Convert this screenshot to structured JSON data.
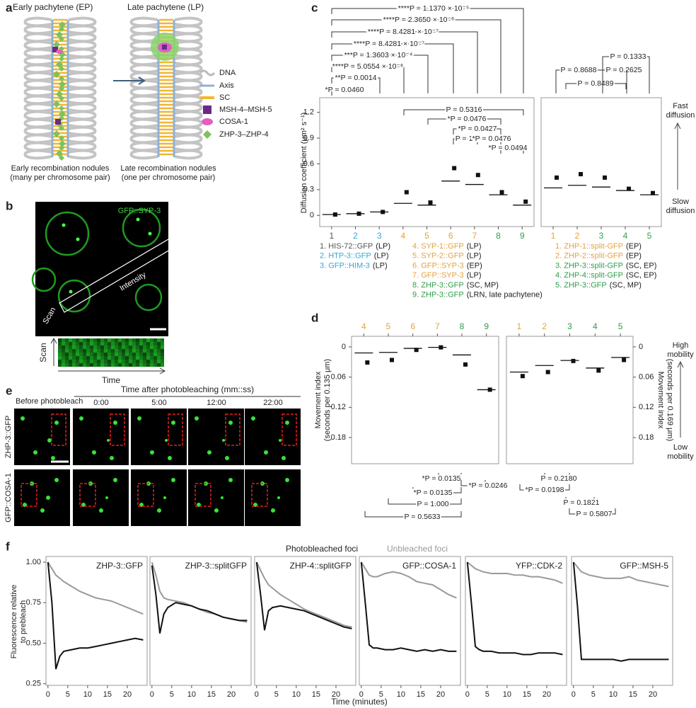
{
  "panels": [
    "a",
    "b",
    "c",
    "d",
    "e",
    "f"
  ],
  "a": {
    "titles": [
      "Early pachytene (EP)",
      "Late pachytene (LP)"
    ],
    "legend": [
      "DNA",
      "Axis",
      "SC",
      "MSH-4–MSH-5",
      "COSA-1",
      "ZHP-3–ZHP-4"
    ],
    "captions": [
      "Early recombination nodules",
      "(many per chromosome pair)",
      "Late recombination nodules",
      "(one per chromosome pair)"
    ]
  },
  "b": {
    "label": "GFP::SYP-3",
    "intensity": "Intensity",
    "scan": "Scan",
    "kymo_y": "Scan",
    "kymo_x": "Time"
  },
  "c": {
    "y_label": "Diffusion coefficient (μm² s⁻¹)",
    "fast": [
      "Fast",
      "diffusion"
    ],
    "slow": [
      "Slow",
      "diffusion"
    ],
    "legend_left": [
      {
        "name": "1. HIS-72::GFP",
        "stage": "(LP)"
      },
      {
        "name": "2. HTP-3::GFP",
        "stage": "(LP)"
      },
      {
        "name": "3. GFP::HIM-3",
        "stage": "(LP)"
      }
    ],
    "legend_mid": [
      {
        "name": "4. SYP-1::GFP",
        "stage": "(LP)"
      },
      {
        "name": "5. SYP-2::GFP",
        "stage": "(LP)"
      },
      {
        "name": "6. GFP::SYP-3",
        "stage": "(EP)"
      },
      {
        "name": "7. GFP::SYP-3",
        "stage": "(LP)"
      },
      {
        "name": "8. ZHP-3::GFP",
        "stage": "(SC, MP)"
      },
      {
        "name": "9. ZHP-3::GFP",
        "stage": "(LRN, late pachytene)"
      }
    ],
    "legend_right": [
      {
        "name": "1. ZHP-1::split-GFP",
        "stage": "(EP)"
      },
      {
        "name": "2. ZHP-2::split-GFP",
        "stage": "(EP)"
      },
      {
        "name": "3. ZHP-3::split-GFP",
        "stage": "(SC, EP)"
      },
      {
        "name": "4. ZHP-4::split-GFP",
        "stage": "(SC, EP)"
      },
      {
        "name": "5. ZHP-3::GFP",
        "stage": "(SC, MP)"
      }
    ],
    "pvalues_top": [
      "****P = 1.1370 × 10⁻⁵",
      "****P = 2.3650 × 10⁻⁶",
      "****P = 8.4281 × 10⁻⁷",
      "****P = 8.4281 × 10⁻⁷",
      "***P = 1.3603 × 10⁻⁴",
      "****P = 5.0554 × 10⁻⁶",
      "**P = 0.0014",
      "*P = 0.0460"
    ],
    "pvalues_left": [
      "P = 0.5316",
      "*P = 0.0476",
      "*P = 0.0427",
      "P = 1",
      "*P = 0.0476",
      "*P = 0.0494"
    ],
    "pvalues_right": [
      "P = 0.1333",
      "P = 0.8688",
      "P = 0.2625",
      "P = 0.8489"
    ]
  },
  "d": {
    "y_label": [
      "Movement index",
      "(seconds per 0.135 μm)"
    ],
    "y2_label": [
      "Movement index",
      "(seconds per 0.169 μm)"
    ],
    "high": [
      "High",
      "mobility"
    ],
    "low": [
      "Low",
      "mobility"
    ],
    "pvalues": [
      "*P = 0.0135",
      "*P = 0.0246",
      "*P = 0.0135",
      "P = 1.000",
      "P = 0.5633",
      "P = 0.2180",
      "*P = 0.0198",
      "P = 0.1821",
      "P = 0.5807"
    ]
  },
  "e": {
    "before": "Before photobleach",
    "time_title": "Time after photobleaching (mm::ss)",
    "times": [
      "0:00",
      "5:00",
      "12:00",
      "22:00"
    ],
    "rows": [
      "ZHP-3::GFP",
      "GFP::COSA-1"
    ]
  },
  "f": {
    "y_label": [
      "Fluorescence relative",
      "to prebleach"
    ],
    "x_label": "Time (minutes)"
  },
  "chart_data": [
    {
      "type": "dot",
      "categories": [
        "1",
        "2",
        "3",
        "4",
        "5",
        "6",
        "7",
        "8",
        "9"
      ],
      "category_colors": [
        "#555555",
        "#35a7d8",
        "#35a7d8",
        "#e6a23c",
        "#e6a23c",
        "#e6a23c",
        "#e6a23c",
        "#2f9e4a",
        "#2f9e4a"
      ],
      "means": [
        0.01,
        0.02,
        0.04,
        0.27,
        0.15,
        0.55,
        0.47,
        0.27,
        0.16
      ],
      "medians": [
        0.01,
        0.02,
        0.04,
        0.14,
        0.12,
        0.4,
        0.36,
        0.24,
        0.12
      ],
      "ylim": [
        -0.13,
        1.37
      ],
      "yticks": [
        0,
        0.3,
        0.6,
        0.9,
        1.2
      ]
    },
    {
      "type": "dot",
      "categories": [
        "1",
        "2",
        "3",
        "4",
        "5"
      ],
      "category_colors": [
        "#e6a23c",
        "#e6a23c",
        "#2f9e4a",
        "#2f9e4a",
        "#2f9e4a"
      ],
      "means": [
        0.44,
        0.48,
        0.44,
        0.31,
        0.26
      ],
      "medians": [
        0.32,
        0.35,
        0.33,
        0.29,
        0.24
      ],
      "ylim": [
        -0.13,
        1.37
      ]
    },
    {
      "type": "dot",
      "categories": [
        "4",
        "5",
        "6",
        "7",
        "8",
        "9"
      ],
      "category_colors": [
        "#e6a23c",
        "#e6a23c",
        "#e6a23c",
        "#e6a23c",
        "#2f9e4a",
        "#2f9e4a"
      ],
      "means": [
        0.031,
        0.026,
        0.006,
        0.001,
        0.035,
        0.085
      ],
      "medians": [
        0.012,
        0.011,
        0.003,
        0.001,
        0.016,
        0.085
      ],
      "ylim": [
        -0.021,
        0.232
      ],
      "y_inverted": true,
      "yticks": [
        0,
        0.06,
        0.12,
        0.18
      ]
    },
    {
      "type": "dot",
      "categories": [
        "1",
        "2",
        "3",
        "4",
        "5"
      ],
      "category_colors": [
        "#e6a23c",
        "#e6a23c",
        "#2f9e4a",
        "#2f9e4a",
        "#2f9e4a"
      ],
      "means": [
        0.058,
        0.05,
        0.028,
        0.047,
        0.026
      ],
      "medians": [
        0.05,
        0.037,
        0.027,
        0.042,
        0.021
      ],
      "ylim": [
        -0.021,
        0.232
      ],
      "y_inverted": true,
      "yticks": [
        0,
        0.06,
        0.12,
        0.18
      ],
      "tick_side": "right"
    },
    {
      "type": "line",
      "title": "ZHP-3::GFP",
      "x": [
        0,
        1,
        2,
        3,
        4,
        6,
        8,
        10,
        12,
        14,
        16,
        18,
        20,
        22,
        24
      ],
      "xlim": [
        -0.5,
        25
      ],
      "ylim": [
        0.24,
        1.035
      ],
      "xticks": [
        0,
        5,
        10,
        15,
        20
      ],
      "yticks": [
        {
          "value": 1,
          "label": "1.00"
        },
        0.75,
        {
          "value": 0.5,
          "label": "0.50"
        },
        0.25
      ],
      "series": [
        {
          "name": "Photobleached foci",
          "color": "#111111",
          "values": [
            1,
            0.75,
            0.34,
            0.42,
            0.45,
            0.46,
            0.47,
            0.47,
            0.48,
            0.49,
            0.5,
            0.51,
            0.52,
            0.53,
            0.52
          ]
        },
        {
          "name": "Unbleached foci",
          "color": "#9a9a9a",
          "values": [
            1,
            0.96,
            0.92,
            0.9,
            0.88,
            0.85,
            0.82,
            0.8,
            0.78,
            0.77,
            0.76,
            0.74,
            0.72,
            0.7,
            0.68
          ]
        }
      ]
    },
    {
      "type": "line",
      "title": "ZHP-3::splitGFP",
      "x": [
        0,
        1,
        2,
        3,
        4,
        6,
        8,
        10,
        12,
        14,
        16,
        18,
        20,
        22,
        24
      ],
      "xlim": [
        -0.5,
        25
      ],
      "ylim": [
        0.24,
        1.035
      ],
      "xticks": [
        0,
        5,
        10,
        15,
        20
      ],
      "series": [
        {
          "color": "#111111",
          "values": [
            0.98,
            0.8,
            0.56,
            0.68,
            0.72,
            0.75,
            0.74,
            0.73,
            0.71,
            0.7,
            0.68,
            0.66,
            0.65,
            0.64,
            0.64
          ]
        },
        {
          "color": "#9a9a9a",
          "values": [
            1,
            0.92,
            0.82,
            0.78,
            0.77,
            0.76,
            0.75,
            0.73,
            0.71,
            0.69,
            0.68,
            0.66,
            0.65,
            0.64,
            0.63
          ]
        }
      ]
    },
    {
      "type": "line",
      "title": "ZHP-4::splitGFP",
      "x": [
        0,
        1,
        2,
        3,
        4,
        6,
        8,
        10,
        12,
        14,
        16,
        18,
        20,
        22,
        24
      ],
      "xlim": [
        -0.5,
        25
      ],
      "ylim": [
        0.24,
        1.035
      ],
      "xticks": [
        0,
        5,
        10,
        15,
        20
      ],
      "series": [
        {
          "color": "#111111",
          "values": [
            1,
            0.8,
            0.58,
            0.7,
            0.72,
            0.73,
            0.72,
            0.71,
            0.7,
            0.68,
            0.66,
            0.64,
            0.62,
            0.6,
            0.59
          ]
        },
        {
          "color": "#9a9a9a",
          "values": [
            1,
            0.95,
            0.9,
            0.86,
            0.84,
            0.8,
            0.77,
            0.74,
            0.71,
            0.69,
            0.67,
            0.65,
            0.63,
            0.61,
            0.6
          ]
        }
      ]
    },
    {
      "type": "line",
      "title": "GFP::COSA-1",
      "x": [
        0,
        1,
        2,
        3,
        4,
        6,
        8,
        10,
        12,
        14,
        16,
        18,
        20,
        22,
        24
      ],
      "xlim": [
        -0.5,
        25
      ],
      "ylim": [
        0.24,
        1.035
      ],
      "xticks": [
        0,
        5,
        10,
        15,
        20
      ],
      "series": [
        {
          "color": "#111111",
          "values": [
            1,
            0.75,
            0.49,
            0.47,
            0.47,
            0.46,
            0.46,
            0.47,
            0.46,
            0.45,
            0.46,
            0.45,
            0.46,
            0.45,
            0.45
          ]
        },
        {
          "color": "#9a9a9a",
          "values": [
            1,
            0.96,
            0.92,
            0.91,
            0.91,
            0.93,
            0.94,
            0.93,
            0.91,
            0.88,
            0.87,
            0.86,
            0.83,
            0.8,
            0.78
          ]
        }
      ]
    },
    {
      "type": "line",
      "title": "YFP::CDK-2",
      "x": [
        0,
        1,
        2,
        3,
        4,
        6,
        8,
        10,
        12,
        14,
        16,
        18,
        20,
        22,
        24
      ],
      "xlim": [
        -0.5,
        25
      ],
      "ylim": [
        0.24,
        1.035
      ],
      "xticks": [
        0,
        5,
        10,
        15,
        20
      ],
      "series": [
        {
          "color": "#111111",
          "values": [
            1,
            0.75,
            0.48,
            0.46,
            0.45,
            0.45,
            0.44,
            0.44,
            0.44,
            0.43,
            0.43,
            0.44,
            0.44,
            0.44,
            0.43
          ]
        },
        {
          "color": "#9a9a9a",
          "values": [
            1,
            0.98,
            0.96,
            0.95,
            0.94,
            0.93,
            0.93,
            0.93,
            0.92,
            0.92,
            0.91,
            0.91,
            0.9,
            0.89,
            0.87
          ]
        }
      ]
    },
    {
      "type": "line",
      "title": "GFP::MSH-5",
      "x": [
        0,
        1,
        2,
        3,
        4,
        6,
        8,
        10,
        12,
        14,
        16,
        18,
        20,
        22,
        24
      ],
      "xlim": [
        -0.5,
        25
      ],
      "ylim": [
        0.24,
        1.035
      ],
      "xticks": [
        0,
        5,
        10,
        15,
        20
      ],
      "series": [
        {
          "color": "#111111",
          "values": [
            1,
            0.73,
            0.4,
            0.4,
            0.4,
            0.4,
            0.4,
            0.4,
            0.39,
            0.4,
            0.4,
            0.4,
            0.4,
            0.4,
            0.4
          ]
        },
        {
          "color": "#9a9a9a",
          "values": [
            1,
            0.97,
            0.94,
            0.93,
            0.92,
            0.91,
            0.9,
            0.9,
            0.9,
            0.91,
            0.89,
            0.88,
            0.87,
            0.86,
            0.85
          ]
        }
      ]
    }
  ]
}
